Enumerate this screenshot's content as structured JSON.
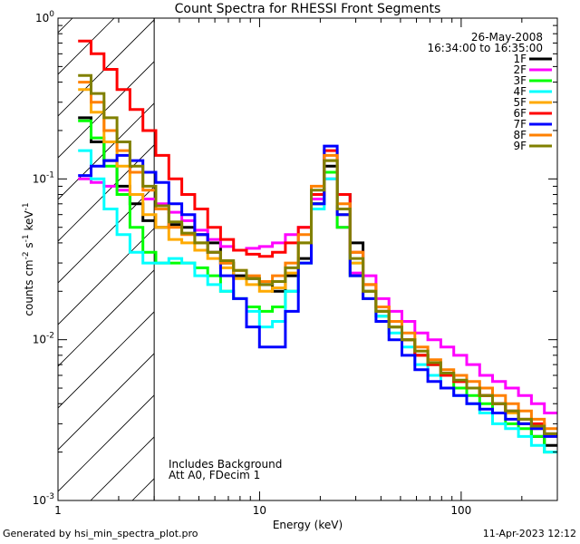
{
  "footer": {
    "generated_by": "Generated by hsi_min_spectra_plot.pro",
    "timestamp": "11-Apr-2023 12:12"
  },
  "chart_data": {
    "type": "line",
    "title": "Count Spectra for RHESSI Front Segments",
    "xlabel": "Energy (keV)",
    "ylabel": "counts cm",
    "ylabel_sup1": "-2",
    "ylabel_mid": " s",
    "ylabel_sup2": "-1",
    "ylabel_end": " keV",
    "ylabel_sup3": "-1",
    "x_scale": "log",
    "y_scale": "log",
    "xlim": [
      1,
      300
    ],
    "ylim": [
      0.001,
      1
    ],
    "x_ticks": [
      {
        "value": 1,
        "label": "1"
      },
      {
        "value": 10,
        "label": "10"
      },
      {
        "value": 100,
        "label": "100"
      }
    ],
    "y_ticks": [
      {
        "value": 1,
        "base": "10",
        "exp": "0"
      },
      {
        "value": 0.1,
        "base": "10",
        "exp": "-1"
      },
      {
        "value": 0.01,
        "base": "10",
        "exp": "-2"
      },
      {
        "value": 0.001,
        "base": "10",
        "exp": "-3"
      }
    ],
    "shaded_region": [
      1,
      3
    ],
    "date": "26-May-2008",
    "time_range": "16:34:00 to 16:35:00",
    "annotation_lines": [
      "Includes Background",
      "Att A0, FDecim 1"
    ],
    "series": [
      {
        "name": "1F",
        "color": "#000000",
        "values": [
          0.24,
          0.17,
          0.13,
          0.09,
          0.07,
          0.055,
          0.05,
          0.052,
          0.05,
          0.045,
          0.04,
          0.03,
          0.025,
          0.024,
          0.022,
          0.02,
          0.025,
          0.032,
          0.07,
          0.12,
          0.08,
          0.04,
          0.02,
          0.015,
          0.012,
          0.01,
          0.008,
          0.007,
          0.006,
          0.0055,
          0.005,
          0.0045,
          0.004,
          0.0035,
          0.003,
          0.0025,
          0.0022
        ]
      },
      {
        "name": "2F",
        "color": "#ff00ff",
        "values": [
          0.1,
          0.095,
          0.09,
          0.085,
          0.08,
          0.075,
          0.07,
          0.062,
          0.055,
          0.048,
          0.042,
          0.038,
          0.036,
          0.037,
          0.038,
          0.04,
          0.045,
          0.05,
          0.075,
          0.1,
          0.05,
          0.026,
          0.025,
          0.018,
          0.015,
          0.013,
          0.011,
          0.01,
          0.009,
          0.008,
          0.007,
          0.006,
          0.0055,
          0.005,
          0.0045,
          0.004,
          0.0035
        ]
      },
      {
        "name": "3F",
        "color": "#00ff00",
        "values": [
          0.23,
          0.18,
          0.12,
          0.08,
          0.05,
          0.035,
          0.03,
          0.03,
          0.03,
          0.028,
          0.025,
          0.02,
          0.018,
          0.016,
          0.015,
          0.016,
          0.02,
          0.03,
          0.07,
          0.11,
          0.05,
          0.025,
          0.018,
          0.014,
          0.012,
          0.01,
          0.008,
          0.007,
          0.006,
          0.005,
          0.0045,
          0.004,
          0.0035,
          0.003,
          0.0028,
          0.0025,
          0.002
        ]
      },
      {
        "name": "4F",
        "color": "#00ffff",
        "values": [
          0.15,
          0.1,
          0.065,
          0.045,
          0.035,
          0.03,
          0.03,
          0.032,
          0.03,
          0.025,
          0.022,
          0.02,
          0.018,
          0.015,
          0.012,
          0.013,
          0.02,
          0.03,
          0.065,
          0.1,
          0.06,
          0.03,
          0.02,
          0.014,
          0.011,
          0.009,
          0.007,
          0.006,
          0.005,
          0.0045,
          0.004,
          0.0035,
          0.003,
          0.0028,
          0.0025,
          0.0022,
          0.002
        ]
      },
      {
        "name": "5F",
        "color": "#ffaa00",
        "values": [
          0.36,
          0.26,
          0.17,
          0.12,
          0.08,
          0.06,
          0.05,
          0.042,
          0.04,
          0.036,
          0.032,
          0.028,
          0.024,
          0.022,
          0.02,
          0.021,
          0.026,
          0.04,
          0.08,
          0.13,
          0.06,
          0.03,
          0.02,
          0.015,
          0.012,
          0.01,
          0.008,
          0.007,
          0.006,
          0.0055,
          0.005,
          0.0045,
          0.004,
          0.0035,
          0.003,
          0.0028,
          0.0025
        ]
      },
      {
        "name": "6F",
        "color": "#ff0000",
        "values": [
          0.72,
          0.6,
          0.48,
          0.36,
          0.27,
          0.2,
          0.14,
          0.1,
          0.08,
          0.065,
          0.05,
          0.042,
          0.036,
          0.034,
          0.033,
          0.035,
          0.04,
          0.05,
          0.08,
          0.15,
          0.08,
          0.035,
          0.022,
          0.016,
          0.013,
          0.01,
          0.008,
          0.007,
          0.006,
          0.0055,
          0.005,
          0.0045,
          0.004,
          0.0036,
          0.0032,
          0.003,
          0.0026
        ]
      },
      {
        "name": "7F",
        "color": "#0000ff",
        "values": [
          0.105,
          0.12,
          0.13,
          0.14,
          0.13,
          0.11,
          0.095,
          0.07,
          0.06,
          0.045,
          0.035,
          0.025,
          0.018,
          0.012,
          0.009,
          0.009,
          0.015,
          0.03,
          0.07,
          0.16,
          0.06,
          0.025,
          0.018,
          0.013,
          0.01,
          0.008,
          0.0065,
          0.0055,
          0.005,
          0.0045,
          0.004,
          0.0037,
          0.0035,
          0.0032,
          0.003,
          0.0028,
          0.0025
        ]
      },
      {
        "name": "8F",
        "color": "#ff8000",
        "values": [
          0.4,
          0.3,
          0.2,
          0.15,
          0.11,
          0.085,
          0.065,
          0.05,
          0.045,
          0.04,
          0.035,
          0.03,
          0.027,
          0.025,
          0.023,
          0.025,
          0.03,
          0.045,
          0.09,
          0.14,
          0.07,
          0.035,
          0.022,
          0.016,
          0.013,
          0.011,
          0.009,
          0.0075,
          0.0065,
          0.006,
          0.0055,
          0.005,
          0.0045,
          0.004,
          0.0036,
          0.0032,
          0.0028
        ]
      },
      {
        "name": "9F",
        "color": "#808000",
        "values": [
          0.44,
          0.34,
          0.24,
          0.17,
          0.12,
          0.09,
          0.068,
          0.054,
          0.046,
          0.04,
          0.035,
          0.031,
          0.027,
          0.024,
          0.022,
          0.023,
          0.028,
          0.04,
          0.085,
          0.13,
          0.065,
          0.032,
          0.02,
          0.015,
          0.012,
          0.01,
          0.0085,
          0.0072,
          0.0062,
          0.0056,
          0.005,
          0.0045,
          0.004,
          0.0036,
          0.0032,
          0.0029,
          0.0026
        ]
      }
    ]
  }
}
